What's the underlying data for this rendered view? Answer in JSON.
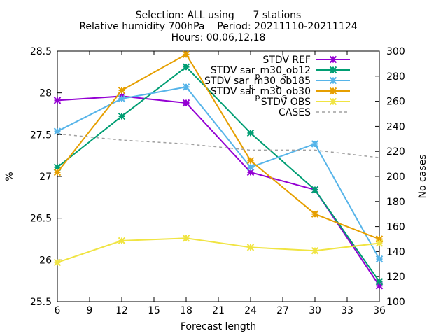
{
  "chart_data": {
    "type": "line",
    "title_lines": [
      "Selection: ALL using      7 stations",
      "Relative humidity 700hPa    Period: 20211110-20211124",
      "Hours: 00,06,12,18"
    ],
    "xlabel": "Forecast length",
    "ylabel": "%",
    "y2label": "No cases",
    "xlim": [
      6,
      36
    ],
    "ylim": [
      25.5,
      28.5
    ],
    "y2lim": [
      100,
      300
    ],
    "xticks": [
      "6",
      "9",
      "12",
      "15",
      "18",
      "21",
      "24",
      "27",
      "30",
      "33",
      "36"
    ],
    "yticks": [
      "25.5",
      "26",
      "26.5",
      "27",
      "27.5",
      "28",
      "28.5"
    ],
    "y2ticks": [
      "100",
      "120",
      "140",
      "160",
      "180",
      "200",
      "220",
      "240",
      "260",
      "280",
      "300"
    ],
    "legend_position": "top-right",
    "x": [
      6,
      12,
      18,
      24,
      30,
      36
    ],
    "series": [
      {
        "name": "STDV REF",
        "axis": "y1",
        "color": "#9400d3",
        "dash": false,
        "marker": true,
        "values": [
          27.91,
          27.96,
          27.88,
          27.05,
          26.84,
          25.69
        ]
      },
      {
        "name": "STDV sar_p m30_s ob12",
        "name_parts": [
          "STDV sar",
          "p",
          "m30",
          "s",
          "ob12"
        ],
        "axis": "y1",
        "color": "#009e73",
        "dash": false,
        "marker": true,
        "values": [
          27.11,
          27.72,
          28.31,
          27.52,
          26.84,
          25.74
        ]
      },
      {
        "name": "STDV sar_p m30_s ob185",
        "name_parts": [
          "STDV sar",
          "p",
          "m30",
          "s",
          "ob185"
        ],
        "axis": "y1",
        "color": "#56b4e9",
        "dash": false,
        "marker": true,
        "values": [
          27.54,
          27.93,
          28.07,
          27.11,
          27.39,
          26.01
        ]
      },
      {
        "name": "STDV sar_p m30_s ob30",
        "name_parts": [
          "STDV sar",
          "p",
          "m30",
          "s",
          "ob30"
        ],
        "axis": "y1",
        "color": "#e69f00",
        "dash": false,
        "marker": true,
        "values": [
          27.05,
          28.03,
          28.46,
          27.19,
          26.55,
          26.25
        ]
      },
      {
        "name": "STDV OBS",
        "axis": "y1",
        "color": "#f0e442",
        "dash": false,
        "marker": true,
        "values": [
          25.97,
          26.23,
          26.26,
          26.15,
          26.11,
          26.2
        ]
      },
      {
        "name": "CASES",
        "axis": "y2",
        "color": "#a0a0a0",
        "dash": true,
        "marker": false,
        "values": [
          234,
          229,
          226,
          221,
          221,
          215
        ]
      }
    ]
  }
}
